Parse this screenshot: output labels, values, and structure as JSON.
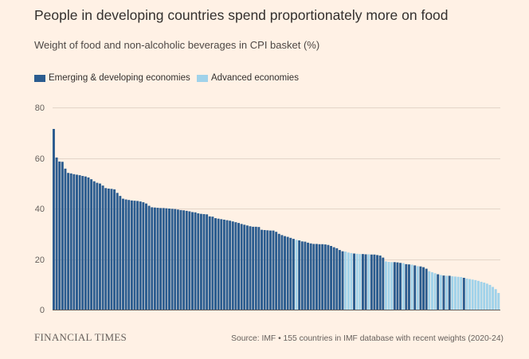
{
  "colors": {
    "background": "#fff1e5",
    "text": "#33302e",
    "subtitle": "#4d4845",
    "muted": "#66605c",
    "gridline": "#e3d5c8",
    "baseline": "#66605c"
  },
  "chart_data": {
    "type": "bar",
    "title": "People in developing countries spend proportionately more on food",
    "subtitle": "Weight of food and non-alcoholic beverages in CPI basket (%)",
    "ylim": [
      0,
      80
    ],
    "yticks": [
      0,
      20,
      40,
      60,
      80
    ],
    "grid": true,
    "legend_position": "top-left",
    "series": [
      {
        "name": "Emerging & developing economies",
        "color": "#2b5c8f"
      },
      {
        "name": "Advanced economies",
        "color": "#a0d2ea"
      }
    ],
    "values": [
      71.5,
      60.2,
      58.6,
      58.5,
      55.8,
      54.1,
      53.9,
      53.6,
      53.4,
      53.2,
      52.9,
      52.7,
      52.3,
      51.6,
      50.8,
      50.2,
      49.9,
      49.1,
      48.1,
      47.9,
      47.8,
      47.6,
      46.2,
      45.0,
      43.9,
      43.6,
      43.4,
      43.2,
      43.1,
      43.0,
      42.8,
      42.5,
      42.0,
      41.1,
      40.5,
      40.4,
      40.3,
      40.2,
      40.2,
      40.1,
      40.0,
      39.9,
      39.8,
      39.6,
      39.4,
      39.3,
      39.1,
      38.9,
      38.6,
      38.5,
      38.1,
      37.9,
      37.8,
      37.7,
      36.9,
      36.8,
      36.2,
      36.0,
      35.8,
      35.6,
      35.4,
      35.2,
      34.9,
      34.6,
      34.3,
      33.9,
      33.6,
      33.3,
      33.0,
      32.8,
      32.8,
      32.7,
      31.6,
      31.5,
      31.4,
      31.3,
      31.3,
      30.8,
      30.0,
      29.5,
      29.1,
      28.8,
      28.4,
      28.0,
      27.6,
      27.4,
      27.0,
      26.9,
      26.5,
      26.2,
      26.0,
      26.0,
      25.9,
      25.9,
      25.8,
      25.6,
      25.2,
      24.7,
      24.3,
      23.6,
      23.1,
      23.0,
      22.6,
      22.4,
      22.2,
      22.1,
      22.0,
      22.0,
      21.9,
      21.9,
      21.8,
      21.8,
      21.6,
      21.4,
      20.6,
      19.1,
      18.9,
      18.8,
      18.8,
      18.7,
      18.5,
      18.4,
      18.0,
      17.9,
      17.8,
      17.5,
      17.2,
      17.1,
      16.8,
      16.2,
      15.2,
      14.8,
      14.4,
      14.0,
      13.7,
      13.5,
      13.4,
      13.4,
      13.2,
      13.1,
      13.0,
      12.9,
      12.6,
      12.3,
      12.1,
      11.9,
      11.7,
      11.4,
      11.0,
      10.7,
      10.3,
      9.8,
      9.0,
      8.1,
      6.6
    ],
    "series_index": [
      0,
      0,
      0,
      0,
      0,
      0,
      0,
      0,
      0,
      0,
      0,
      0,
      0,
      0,
      0,
      0,
      0,
      0,
      0,
      0,
      0,
      0,
      0,
      0,
      0,
      0,
      0,
      0,
      0,
      0,
      0,
      0,
      0,
      0,
      0,
      0,
      0,
      0,
      0,
      0,
      0,
      0,
      0,
      0,
      0,
      0,
      0,
      0,
      0,
      0,
      0,
      0,
      0,
      0,
      0,
      0,
      0,
      0,
      0,
      0,
      0,
      0,
      0,
      0,
      0,
      0,
      0,
      0,
      0,
      0,
      0,
      0,
      0,
      0,
      0,
      0,
      0,
      0,
      0,
      0,
      0,
      0,
      0,
      0,
      1,
      0,
      0,
      0,
      0,
      0,
      0,
      0,
      0,
      0,
      0,
      0,
      0,
      0,
      0,
      0,
      0,
      1,
      1,
      1,
      0,
      1,
      1,
      0,
      0,
      1,
      0,
      0,
      0,
      0,
      0,
      1,
      1,
      1,
      0,
      0,
      0,
      1,
      0,
      0,
      1,
      0,
      1,
      0,
      0,
      0,
      1,
      1,
      1,
      0,
      1,
      0,
      1,
      0,
      1,
      1,
      1,
      1,
      0,
      1,
      1,
      1,
      1,
      1,
      1,
      1,
      1,
      1,
      1,
      1,
      1
    ]
  },
  "footer": {
    "brand": "FINANCIAL TIMES",
    "source": "Source: IMF • 155 countries in IMF database with recent weights (2020-24)"
  }
}
